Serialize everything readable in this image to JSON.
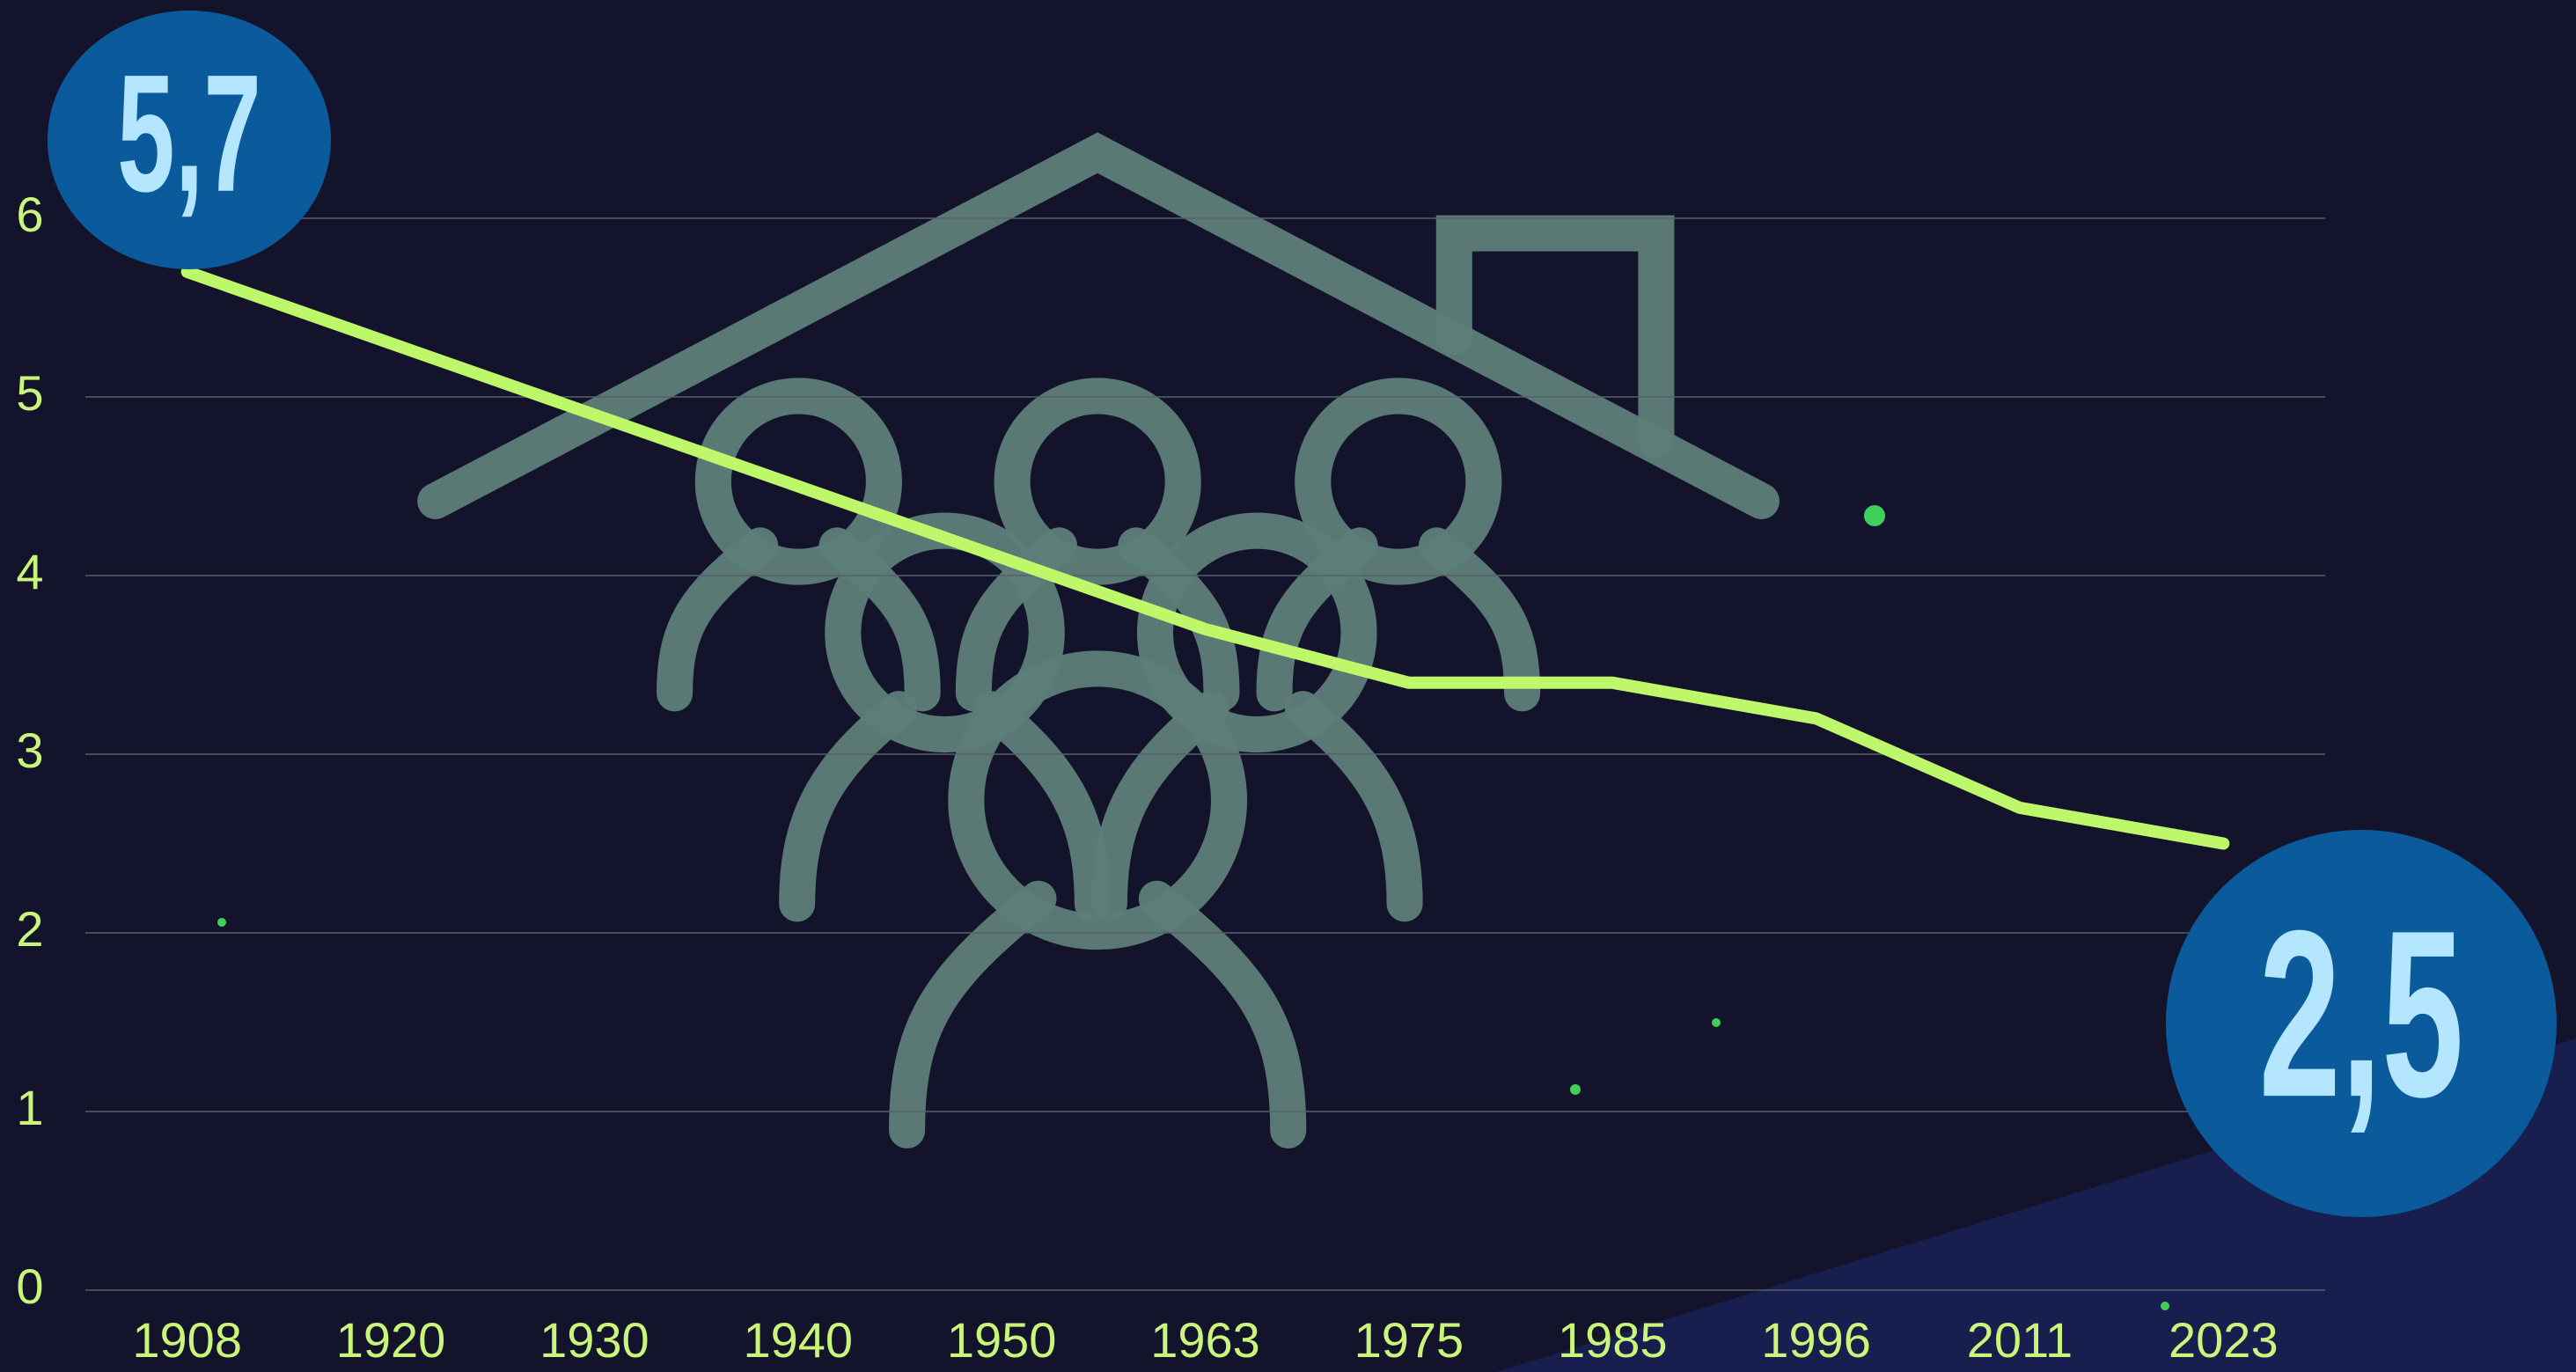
{
  "chart_data": {
    "type": "line",
    "categories": [
      "1908",
      "1920",
      "1930",
      "1940",
      "1950",
      "1963",
      "1975",
      "1985",
      "1996",
      "2011",
      "2023"
    ],
    "values": [
      5.7,
      5.3,
      4.9,
      4.5,
      4.1,
      3.7,
      3.4,
      3.4,
      3.2,
      2.7,
      2.5
    ],
    "value_labels": [
      "5,7",
      null,
      null,
      null,
      null,
      null,
      null,
      null,
      null,
      null,
      "2,5"
    ],
    "color": "#bff76a",
    "ylim": [
      0,
      7
    ],
    "yticks": [
      0,
      1,
      2,
      3,
      4,
      5,
      6
    ],
    "grid": true
  }
}
